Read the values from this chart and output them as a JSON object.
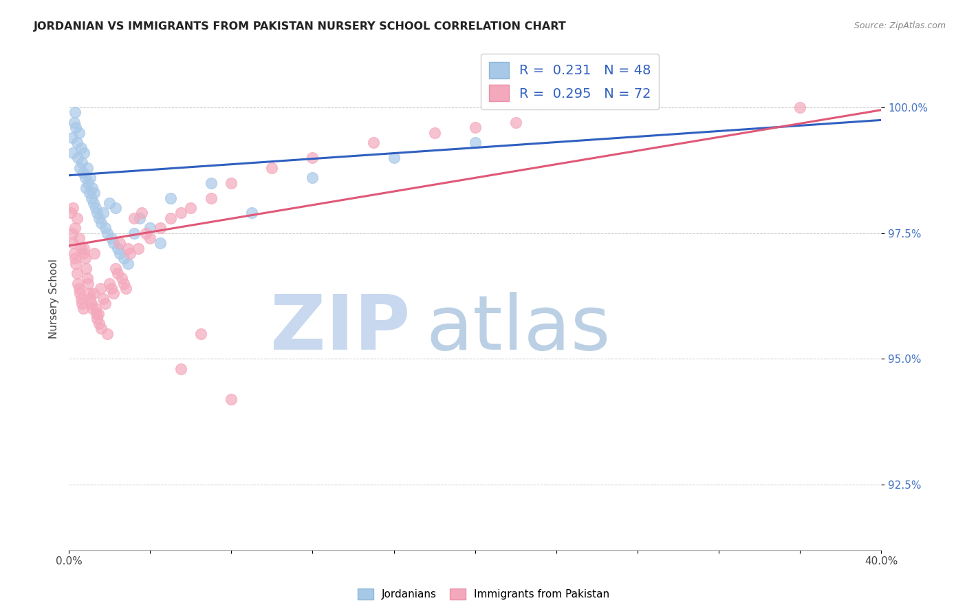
{
  "title": "JORDANIAN VS IMMIGRANTS FROM PAKISTAN NURSERY SCHOOL CORRELATION CHART",
  "source": "Source: ZipAtlas.com",
  "ylabel": "Nursery School",
  "ytick_values": [
    92.5,
    95.0,
    97.5,
    100.0
  ],
  "xlim": [
    0.0,
    40.0
  ],
  "ylim": [
    91.2,
    101.2
  ],
  "jordanian_color": "#a8c8e8",
  "pakistan_color": "#f4a8bc",
  "jordan_line_color": "#3060c0",
  "pakistan_line_color": "#e05878",
  "watermark_zip_color": "#c8d8ee",
  "watermark_atlas_color": "#b0c8e0",
  "jordanians_x": [
    0.15,
    0.2,
    0.25,
    0.3,
    0.35,
    0.4,
    0.45,
    0.5,
    0.55,
    0.6,
    0.65,
    0.7,
    0.75,
    0.8,
    0.85,
    0.9,
    0.95,
    1.0,
    1.05,
    1.1,
    1.15,
    1.2,
    1.25,
    1.3,
    1.4,
    1.5,
    1.6,
    1.7,
    1.8,
    1.9,
    2.0,
    2.1,
    2.2,
    2.3,
    2.4,
    2.5,
    2.7,
    2.9,
    3.2,
    3.5,
    4.0,
    4.5,
    5.0,
    7.0,
    9.0,
    12.0,
    16.0,
    20.0
  ],
  "jordanians_y": [
    99.4,
    99.1,
    99.7,
    99.9,
    99.6,
    99.3,
    99.0,
    99.5,
    98.8,
    99.2,
    98.9,
    98.7,
    99.1,
    98.6,
    98.4,
    98.8,
    98.5,
    98.3,
    98.6,
    98.2,
    98.4,
    98.1,
    98.3,
    98.0,
    97.9,
    97.8,
    97.7,
    97.9,
    97.6,
    97.5,
    98.1,
    97.4,
    97.3,
    98.0,
    97.2,
    97.1,
    97.0,
    96.9,
    97.5,
    97.8,
    97.6,
    97.3,
    98.2,
    98.5,
    97.9,
    98.6,
    99.0,
    99.3
  ],
  "pakistan_x": [
    0.1,
    0.15,
    0.2,
    0.25,
    0.3,
    0.35,
    0.4,
    0.45,
    0.5,
    0.55,
    0.6,
    0.65,
    0.7,
    0.75,
    0.8,
    0.85,
    0.9,
    0.95,
    1.0,
    1.05,
    1.1,
    1.15,
    1.2,
    1.25,
    1.3,
    1.35,
    1.4,
    1.45,
    1.5,
    1.55,
    1.6,
    1.7,
    1.8,
    1.9,
    2.0,
    2.1,
    2.2,
    2.3,
    2.4,
    2.5,
    2.6,
    2.7,
    2.8,
    2.9,
    3.0,
    3.2,
    3.4,
    3.6,
    3.8,
    4.0,
    4.5,
    5.0,
    5.5,
    6.0,
    7.0,
    8.0,
    10.0,
    12.0,
    15.0,
    18.0,
    20.0,
    22.0,
    0.2,
    0.3,
    0.4,
    0.5,
    0.6,
    0.7,
    5.5,
    6.5,
    8.0,
    36.0
  ],
  "pakistan_y": [
    97.9,
    97.5,
    97.3,
    97.1,
    97.0,
    96.9,
    96.7,
    96.5,
    96.4,
    96.3,
    96.2,
    96.1,
    96.0,
    97.2,
    97.0,
    96.8,
    96.6,
    96.5,
    96.3,
    96.2,
    96.1,
    96.0,
    96.3,
    97.1,
    96.0,
    95.9,
    95.8,
    95.9,
    95.7,
    96.4,
    95.6,
    96.2,
    96.1,
    95.5,
    96.5,
    96.4,
    96.3,
    96.8,
    96.7,
    97.3,
    96.6,
    96.5,
    96.4,
    97.2,
    97.1,
    97.8,
    97.2,
    97.9,
    97.5,
    97.4,
    97.6,
    97.8,
    97.9,
    98.0,
    98.2,
    98.5,
    98.8,
    99.0,
    99.3,
    99.5,
    99.6,
    99.7,
    98.0,
    97.6,
    97.8,
    97.4,
    97.2,
    97.1,
    94.8,
    95.5,
    94.2,
    100.0
  ],
  "jordan_intercept": 98.65,
  "jordan_slope_per40": 1.1,
  "pakistan_intercept": 97.25,
  "pakistan_slope_per40": 2.7
}
